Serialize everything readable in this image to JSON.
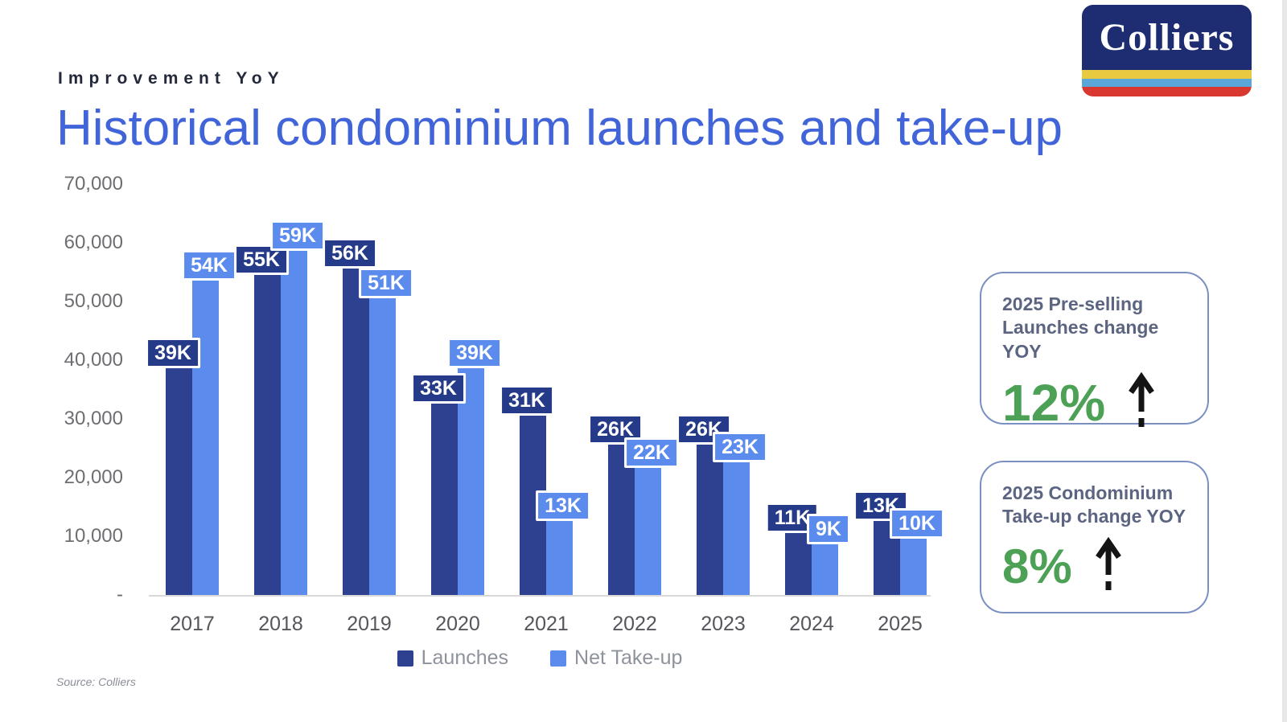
{
  "page": {
    "kicker": "Improvement YoY",
    "title": "Historical condominium launches and take-up",
    "source": "Source: Colliers"
  },
  "logo": {
    "text": "Colliers"
  },
  "chart_data": {
    "type": "bar",
    "title": "Historical condominium launches and take-up",
    "categories": [
      "2017",
      "2018",
      "2019",
      "2020",
      "2021",
      "2022",
      "2023",
      "2024",
      "2025"
    ],
    "series": [
      {
        "name": "Launches",
        "color": "#2e4190",
        "label_bg": "#253a88",
        "values": [
          39000,
          55000,
          56000,
          33000,
          31000,
          26000,
          26000,
          11000,
          13000
        ],
        "labels": [
          "39K",
          "55K",
          "56K",
          "33K",
          "31K",
          "26K",
          "26K",
          "11K",
          "13K"
        ]
      },
      {
        "name": "Net Take-up",
        "color": "#5b8bec",
        "label_bg": "#5b8bec",
        "values": [
          54000,
          59000,
          51000,
          39000,
          13000,
          22000,
          23000,
          9000,
          10000
        ],
        "labels": [
          "54K",
          "59K",
          "51K",
          "39K",
          "13K",
          "22K",
          "23K",
          "9K",
          "10K"
        ]
      }
    ],
    "ylim": [
      0,
      70000
    ],
    "yticks": [
      "70,000",
      "60,000",
      "50,000",
      "40,000",
      "30,000",
      "20,000",
      "10,000",
      "-"
    ],
    "grid": false,
    "legend_position": "bottom"
  },
  "callouts": [
    {
      "title": "2025 Pre-selling Launches change YOY",
      "value": "12%",
      "direction": "up",
      "value_color": "#4da156"
    },
    {
      "title": "2025 Condominium Take-up change YOY",
      "value": "8%",
      "direction": "up",
      "value_color": "#4da156"
    }
  ]
}
